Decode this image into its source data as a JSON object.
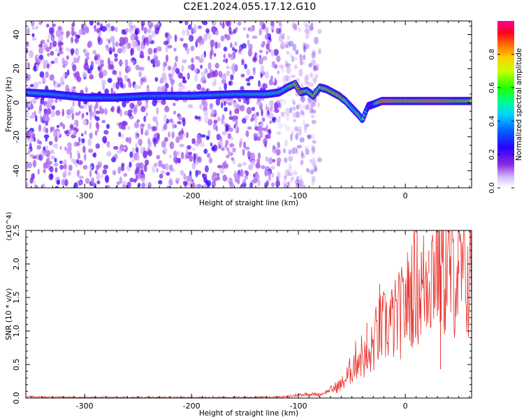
{
  "title": "C2E1.2024.055.17.12.G10",
  "chart_data": [
    {
      "type": "heatmap",
      "xlabel": "Height of straight line (km)",
      "ylabel": "Frequency (Hz)",
      "xlim": [
        -355,
        62
      ],
      "ylim": [
        -50,
        48
      ],
      "x_ticks": [
        -300,
        -200,
        -100,
        0
      ],
      "x_tick_labels": [
        "-300",
        "-200",
        "-100",
        "0"
      ],
      "y_ticks": [
        -40,
        -20,
        0,
        20,
        40
      ],
      "y_tick_labels": [
        "-40",
        "-20",
        "0",
        "20",
        "40"
      ],
      "colorbar": {
        "label": "Normalized spectral amplitude",
        "range": [
          0,
          1
        ],
        "ticks": [
          0.0,
          0.2,
          0.4,
          0.6,
          0.8
        ],
        "tick_labels": [
          "0.0",
          "0.2",
          "0.4",
          "0.6",
          "0.8"
        ]
      },
      "ridge": {
        "x": [
          -355,
          -330,
          -300,
          -270,
          -240,
          -200,
          -160,
          -130,
          -118,
          -110,
          -103,
          -98,
          -92,
          -86,
          -80,
          -74,
          -68,
          -62,
          -56,
          -50,
          -44,
          -40,
          -35,
          -30,
          -22,
          -12,
          0,
          10,
          20,
          30,
          40,
          50,
          62
        ],
        "y": [
          6,
          5,
          3,
          3,
          4,
          4,
          5,
          5,
          6,
          9,
          11,
          6,
          7,
          4,
          9,
          8,
          6,
          4,
          1,
          -3,
          -7,
          -10,
          -2,
          -1,
          1,
          1,
          1,
          1,
          1,
          1,
          1,
          1,
          1
        ],
        "amplitude": [
          0.55,
          0.5,
          0.45,
          0.45,
          0.45,
          0.5,
          0.5,
          0.55,
          0.55,
          0.6,
          0.8,
          0.95,
          0.6,
          0.8,
          0.7,
          0.75,
          0.8,
          0.85,
          0.7,
          0.55,
          0.65,
          0.6,
          0.35,
          0.35,
          1.0,
          0.9,
          0.85,
          0.85,
          0.9,
          0.9,
          0.85,
          0.8,
          0.75
        ]
      },
      "noise_extent_x": [
        -355,
        -80
      ],
      "grid": false
    },
    {
      "type": "line",
      "xlabel": "Height of straight line (km)",
      "ylabel": "SNR (10 * v/v)",
      "y_multiplier": "(x10^4)",
      "xlim": [
        -355,
        62
      ],
      "ylim": [
        0,
        2.5
      ],
      "x_ticks": [
        -300,
        -200,
        -100,
        0
      ],
      "x_tick_labels": [
        "-300",
        "-200",
        "-100",
        "0"
      ],
      "y_ticks": [
        0,
        0.5,
        1.0,
        1.5,
        2.0,
        2.5
      ],
      "y_tick_labels": [
        "0.0",
        "0.5",
        "1.0",
        "1.5",
        "2.0",
        "2.5"
      ],
      "series": [
        {
          "color": "#e8302a",
          "x": [
            -355,
            -300,
            -250,
            -200,
            -150,
            -110,
            -100,
            -90,
            -80,
            -70,
            -60,
            -55,
            -50,
            -45,
            -40,
            -35,
            -30,
            -25,
            -20,
            -15,
            -10,
            -5,
            0,
            5,
            10,
            15,
            20,
            25,
            30,
            35,
            40,
            45,
            50,
            55,
            62
          ],
          "y": [
            0.02,
            0.01,
            0.01,
            0.01,
            0.01,
            0.02,
            0.05,
            0.06,
            0.05,
            0.12,
            0.2,
            0.3,
            0.45,
            0.6,
            0.65,
            0.5,
            0.8,
            1.0,
            1.05,
            1.1,
            1.15,
            1.25,
            1.35,
            1.6,
            1.7,
            1.6,
            1.8,
            1.95,
            2.05,
            1.9,
            1.85,
            1.9,
            1.85,
            1.8,
            1.75
          ],
          "spikes": [
            {
              "x": -36,
              "y": 1.12
            },
            {
              "x": -24,
              "y": 1.7
            },
            {
              "x": -14,
              "y": 1.47
            },
            {
              "x": 0,
              "y": 1.7
            },
            {
              "x": 3,
              "y": 1.95
            },
            {
              "x": 15,
              "y": 2.18
            },
            {
              "x": 22,
              "y": 2.2
            },
            {
              "x": 32,
              "y": 2.5
            },
            {
              "x": 33,
              "y": 0.43
            },
            {
              "x": 50,
              "y": 2.05
            }
          ]
        }
      ],
      "grid": false
    }
  ]
}
